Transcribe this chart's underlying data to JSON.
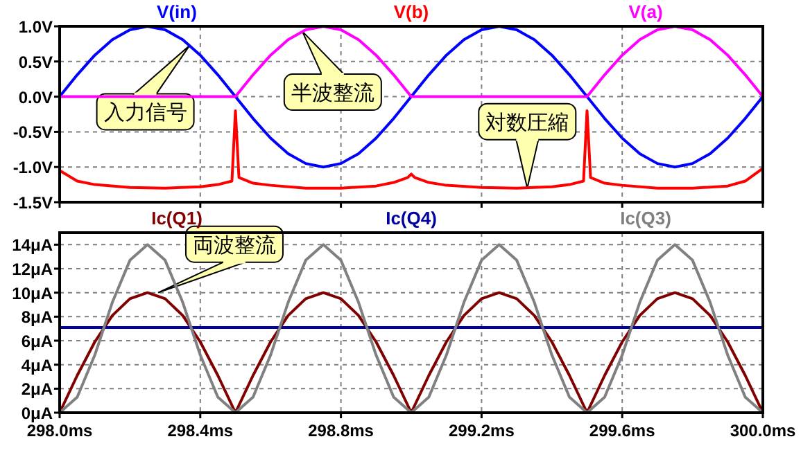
{
  "chart_data": [
    {
      "type": "line",
      "x": [
        298,
        298.05,
        298.1,
        298.15,
        298.2,
        298.25,
        298.3,
        298.35,
        298.4,
        298.45,
        298.5,
        298.55,
        298.6,
        298.65,
        298.7,
        298.75,
        298.8,
        298.85,
        298.9,
        298.95,
        299,
        299.05,
        299.1,
        299.15,
        299.2,
        299.25,
        299.3,
        299.35,
        299.4,
        299.45,
        299.5,
        299.55,
        299.6,
        299.65,
        299.7,
        299.75,
        299.8,
        299.85,
        299.9,
        299.95,
        300
      ],
      "series": [
        {
          "name": "V(in)",
          "color": "#0000ff",
          "values": [
            0,
            0.31,
            0.59,
            0.81,
            0.95,
            1,
            0.95,
            0.81,
            0.59,
            0.31,
            0,
            -0.31,
            -0.59,
            -0.81,
            -0.95,
            -1,
            -0.95,
            -0.81,
            -0.59,
            -0.31,
            0,
            0.31,
            0.59,
            0.81,
            0.95,
            1,
            0.95,
            0.81,
            0.59,
            0.31,
            0,
            -0.31,
            -0.59,
            -0.81,
            -0.95,
            -1,
            -0.95,
            -0.81,
            -0.59,
            -0.31,
            0
          ]
        },
        {
          "name": "V(b)",
          "color": "#ff0000",
          "x": [
            298,
            298.05,
            298.1,
            298.2,
            298.3,
            298.4,
            298.45,
            298.49,
            298.5,
            298.51,
            298.55,
            298.6,
            298.7,
            298.8,
            298.9,
            298.95,
            298.99,
            299,
            299.01,
            299.05,
            299.1,
            299.2,
            299.3,
            299.4,
            299.45,
            299.49,
            299.5,
            299.51,
            299.55,
            299.6,
            299.7,
            299.8,
            299.9,
            299.95,
            300
          ],
          "values": [
            -1.05,
            -1.2,
            -1.25,
            -1.29,
            -1.3,
            -1.28,
            -1.25,
            -1.2,
            -0.2,
            -1.15,
            -1.23,
            -1.26,
            -1.3,
            -1.3,
            -1.27,
            -1.22,
            -1.15,
            -1.1,
            -1.15,
            -1.22,
            -1.26,
            -1.29,
            -1.3,
            -1.28,
            -1.25,
            -1.2,
            -0.2,
            -1.15,
            -1.23,
            -1.26,
            -1.3,
            -1.3,
            -1.27,
            -1.2,
            -1.02
          ]
        },
        {
          "name": "V(a)",
          "color": "#ff00ff",
          "values": [
            0,
            0,
            0,
            0,
            0,
            0,
            0,
            0,
            0,
            0,
            0,
            0.31,
            0.59,
            0.81,
            0.95,
            1,
            0.95,
            0.81,
            0.59,
            0.31,
            0,
            0,
            0,
            0,
            0,
            0,
            0,
            0,
            0,
            0,
            0,
            0.31,
            0.59,
            0.81,
            0.95,
            1,
            0.95,
            0.81,
            0.59,
            0.31,
            0
          ]
        }
      ],
      "xlim": [
        298,
        300
      ],
      "xticks": [
        298,
        298.4,
        298.8,
        299.2,
        299.6,
        300
      ],
      "ylim": [
        -1.5,
        1.0
      ],
      "yticks": [
        {
          "value": 1.0,
          "label": "1.0V"
        },
        {
          "value": 0.5,
          "label": "0.5V"
        },
        {
          "value": 0,
          "label": "0.0V"
        },
        {
          "value": -0.5,
          "label": "-0.5V"
        },
        {
          "value": -1.0,
          "label": "-1.0V"
        },
        {
          "value": -1.5,
          "label": "-1.5V"
        }
      ],
      "tick_labels": "y",
      "grid": true,
      "legend": "top",
      "annotations": [
        {
          "text": "入力信号",
          "x": 298.37,
          "y": 0.73
        },
        {
          "text": "半波整流",
          "x": 298.69,
          "y": 0.93
        },
        {
          "text": "対数圧縮",
          "x": 299.33,
          "y": -1.3
        }
      ]
    },
    {
      "type": "line",
      "x": [
        298,
        298.05,
        298.1,
        298.15,
        298.2,
        298.25,
        298.3,
        298.35,
        298.4,
        298.45,
        298.5,
        298.55,
        298.6,
        298.65,
        298.7,
        298.75,
        298.8,
        298.85,
        298.9,
        298.95,
        299,
        299.05,
        299.1,
        299.15,
        299.2,
        299.25,
        299.3,
        299.35,
        299.4,
        299.45,
        299.5,
        299.55,
        299.6,
        299.65,
        299.7,
        299.75,
        299.8,
        299.85,
        299.9,
        299.95,
        300
      ],
      "series": [
        {
          "name": "Ic(Q1)",
          "color": "#800000",
          "values": [
            0,
            3.1,
            5.9,
            8.1,
            9.5,
            10,
            9.5,
            8.1,
            5.9,
            3.1,
            0,
            3.1,
            5.9,
            8.1,
            9.5,
            10,
            9.5,
            8.1,
            5.9,
            3.1,
            0,
            3.1,
            5.9,
            8.1,
            9.5,
            10,
            9.5,
            8.1,
            5.9,
            3.1,
            0,
            3.1,
            5.9,
            8.1,
            9.5,
            10,
            9.5,
            8.1,
            5.9,
            3.1,
            0
          ]
        },
        {
          "name": "Ic(Q4)",
          "color": "#0000a0",
          "x": [
            298,
            300
          ],
          "values": [
            7.1,
            7.1
          ]
        },
        {
          "name": "Ic(Q3)",
          "color": "#808080",
          "values": [
            0,
            1.3,
            4.8,
            9.2,
            12.7,
            14,
            12.7,
            9.2,
            4.8,
            1.3,
            0,
            1.3,
            4.8,
            9.2,
            12.7,
            14,
            12.7,
            9.2,
            4.8,
            1.3,
            0,
            1.3,
            4.8,
            9.2,
            12.7,
            14,
            12.7,
            9.2,
            4.8,
            1.3,
            0,
            1.3,
            4.8,
            9.2,
            12.7,
            14,
            12.7,
            9.2,
            4.8,
            1.3,
            0
          ]
        }
      ],
      "xlim": [
        298,
        300
      ],
      "xticks": [
        {
          "value": 298,
          "label": "298.0ms"
        },
        {
          "value": 298.4,
          "label": "298.4ms"
        },
        {
          "value": 298.8,
          "label": "298.8ms"
        },
        {
          "value": 299.2,
          "label": "299.2ms"
        },
        {
          "value": 299.6,
          "label": "299.6ms"
        },
        {
          "value": 300,
          "label": "300.0ms"
        }
      ],
      "ylim": [
        0,
        15
      ],
      "yticks": [
        {
          "value": 0,
          "label": "0μA"
        },
        {
          "value": 2,
          "label": "2μA"
        },
        {
          "value": 4,
          "label": "4μA"
        },
        {
          "value": 6,
          "label": "6μA"
        },
        {
          "value": 8,
          "label": "8μA"
        },
        {
          "value": 10,
          "label": "10μA"
        },
        {
          "value": 12,
          "label": "12μA"
        },
        {
          "value": 14,
          "label": "14μA"
        }
      ],
      "grid": true,
      "legend": "top",
      "annotations": [
        {
          "text": "両波整流",
          "x": 298.28,
          "y": 10
        }
      ]
    }
  ]
}
